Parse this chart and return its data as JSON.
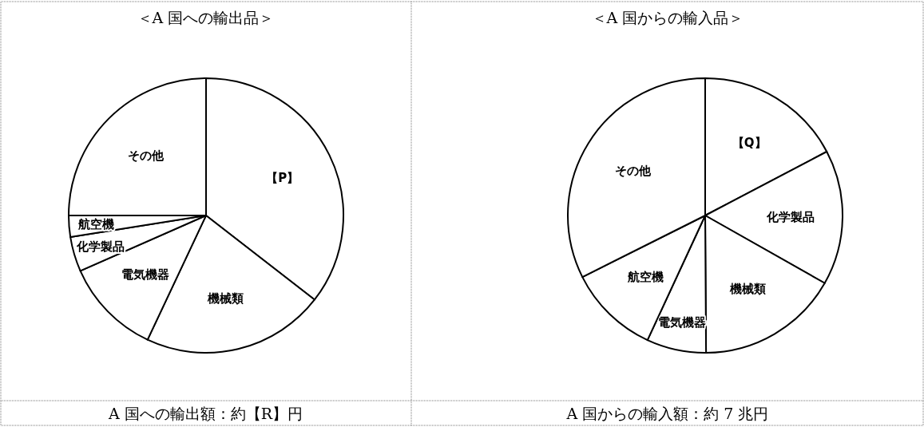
{
  "chart_data": [
    {
      "type": "pie",
      "title": "＜A 国への輸出品＞",
      "categories": [
        "【P】",
        "機械類",
        "電気機器",
        "化学製品",
        "航空機",
        "その他"
      ],
      "values": [
        35.5,
        21.5,
        11.4,
        4.1,
        2.5,
        25
      ],
      "colors": [
        "#ffffff",
        "#ffffff",
        "#ffffff",
        "#ffffff",
        "#ffffff",
        "#ffffff"
      ],
      "annotations": [
        "A 国への輸出額：約【R】円"
      ]
    },
    {
      "type": "pie",
      "title": "＜A 国からの輸入品＞",
      "categories": [
        "【Q】",
        "化学製品",
        "機械類",
        "電気機器",
        "航空機",
        "その他"
      ],
      "values": [
        17.3,
        15.9,
        16.7,
        7.0,
        10.7,
        32.4
      ],
      "colors": [
        "#ffffff",
        "#ffffff",
        "#ffffff",
        "#ffffff",
        "#ffffff",
        "#ffffff"
      ],
      "annotations": [
        "A 国からの輸入額：約 7 兆円"
      ]
    }
  ]
}
